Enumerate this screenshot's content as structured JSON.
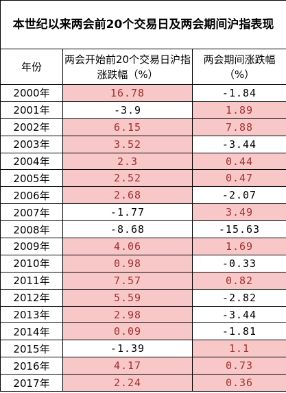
{
  "table": {
    "title": "本世纪以来两会前20个交易日及两会期间沪指表现",
    "header": [
      "年份",
      "两会开始前20个交易日沪指涨跌幅（%）",
      "两会期间涨跌幅（%）"
    ],
    "rows": [
      [
        "2000年",
        "16.78",
        "-1.84"
      ],
      [
        "2001年",
        "-3.9",
        "1.89"
      ],
      [
        "2002年",
        "6.15",
        "7.88"
      ],
      [
        "2003年",
        "3.52",
        "-3.44"
      ],
      [
        "2004年",
        "2.3",
        "0.44"
      ],
      [
        "2005年",
        "2.52",
        "0.47"
      ],
      [
        "2006年",
        "2.68",
        "-2.07"
      ],
      [
        "2007年",
        "-1.77",
        "3.49"
      ],
      [
        "2008年",
        "-8.68",
        "-15.63"
      ],
      [
        "2009年",
        "4.06",
        "1.69"
      ],
      [
        "2010年",
        "0.98",
        "-0.33"
      ],
      [
        "2011年",
        "7.57",
        "0.82"
      ],
      [
        "2012年",
        "5.59",
        "-2.82"
      ],
      [
        "2013年",
        "2.98",
        "-3.44"
      ],
      [
        "2014年",
        "0.09",
        "-1.81"
      ],
      [
        "2015年",
        "-1.39",
        "1.1"
      ],
      [
        "2016年",
        "4.17",
        "0.73"
      ],
      [
        "2017年",
        "2.24",
        "0.36"
      ]
    ],
    "positive_fill": "#f8c8c8",
    "positive_text": "#a03030"
  }
}
